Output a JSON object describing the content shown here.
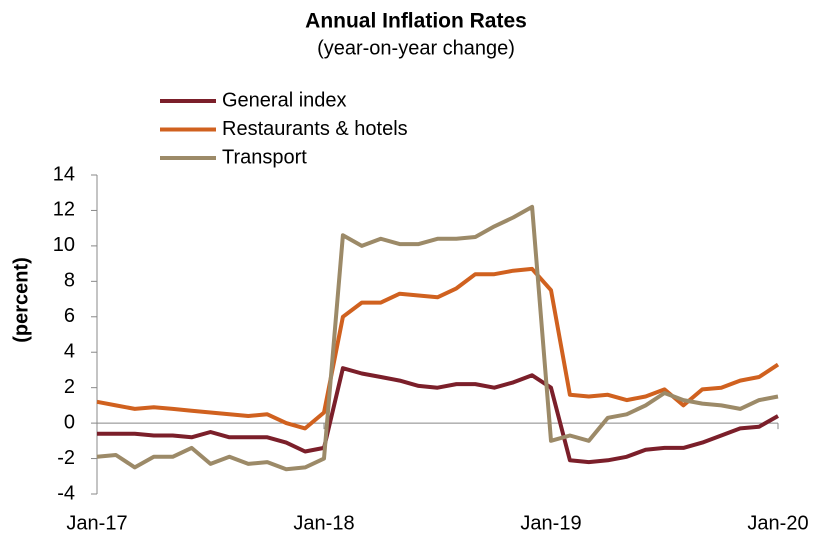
{
  "chart_data": {
    "type": "line",
    "title": "Annual Inflation Rates",
    "subtitle": "(year-on-year change)",
    "y_label": "(percent)",
    "categories": [
      "Jan-17",
      null,
      null,
      null,
      null,
      null,
      null,
      null,
      null,
      null,
      null,
      null,
      "Jan-18",
      null,
      null,
      null,
      null,
      null,
      null,
      null,
      null,
      null,
      null,
      null,
      "Jan-19",
      null,
      null,
      null,
      null,
      null,
      null,
      null,
      null,
      null,
      null,
      null,
      "Jan-20"
    ],
    "series": [
      {
        "name": "General index",
        "color": "#7b1f2a",
        "values": [
          -0.6,
          -0.6,
          -0.6,
          -0.7,
          -0.7,
          -0.8,
          -0.5,
          -0.8,
          -0.8,
          -0.8,
          -1.1,
          -1.6,
          -1.4,
          3.1,
          2.8,
          2.6,
          2.4,
          2.1,
          2.0,
          2.2,
          2.2,
          2.0,
          2.3,
          2.7,
          2.0,
          -2.1,
          -2.2,
          -2.1,
          -1.9,
          -1.5,
          -1.4,
          -1.4,
          -1.1,
          -0.7,
          -0.3,
          -0.2,
          0.4
        ]
      },
      {
        "name": "Restaurants & hotels",
        "color": "#d0611f",
        "values": [
          1.2,
          1.0,
          0.8,
          0.9,
          0.8,
          0.7,
          0.6,
          0.5,
          0.4,
          0.5,
          0.0,
          -0.3,
          0.6,
          6.0,
          6.8,
          6.8,
          7.3,
          7.2,
          7.1,
          7.6,
          8.4,
          8.4,
          8.6,
          8.7,
          7.5,
          1.6,
          1.5,
          1.6,
          1.3,
          1.5,
          1.9,
          1.0,
          1.9,
          2.0,
          2.4,
          2.6,
          3.3
        ]
      },
      {
        "name": "Transport",
        "color": "#9c8a68",
        "values": [
          -1.9,
          -1.8,
          -2.5,
          -1.9,
          -1.9,
          -1.4,
          -2.3,
          -1.9,
          -2.3,
          -2.2,
          -2.6,
          -2.5,
          -2.0,
          10.6,
          10.0,
          10.4,
          10.1,
          10.1,
          10.4,
          10.4,
          10.5,
          11.1,
          11.6,
          12.2,
          -1.0,
          -0.7,
          -1.0,
          0.3,
          0.5,
          1.0,
          1.7,
          1.3,
          1.1,
          1.0,
          0.8,
          1.3,
          1.5
        ]
      }
    ],
    "ylim": [
      -4,
      14
    ],
    "yticks": [
      -4,
      -2,
      0,
      2,
      4,
      6,
      8,
      10,
      12,
      14
    ],
    "grid": false,
    "legend": "top"
  }
}
